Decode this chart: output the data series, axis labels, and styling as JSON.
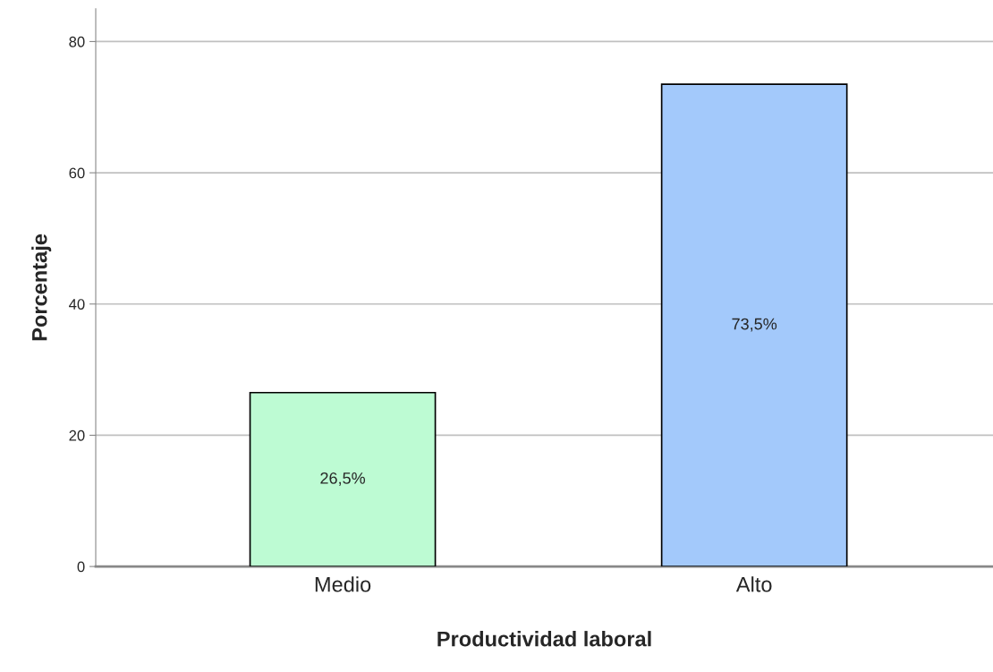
{
  "chart_data": {
    "type": "bar",
    "xlabel": "Productividad laboral",
    "ylabel": "Porcentaje",
    "categories": [
      "Medio",
      "Alto"
    ],
    "values": [
      26.5,
      73.5
    ],
    "colors": [
      "#bdfbd3",
      "#a3c9fb"
    ],
    "value_labels": [
      "26,5%",
      "73,5%"
    ],
    "ylim": [
      0,
      85
    ],
    "yticks": [
      0,
      20,
      40,
      60,
      80
    ],
    "grid": "y",
    "legend": false
  }
}
